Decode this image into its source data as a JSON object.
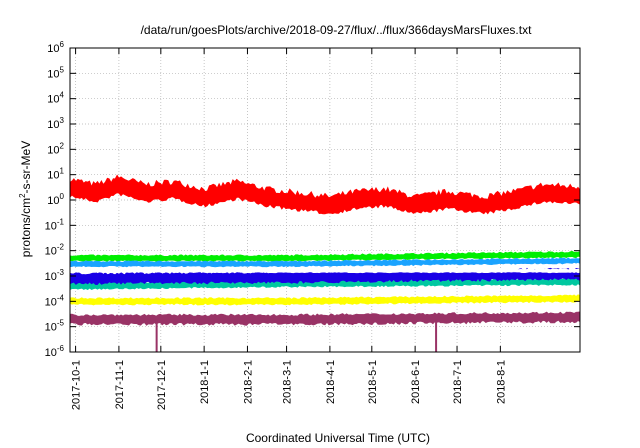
{
  "chart_data": {
    "type": "line",
    "title": "/data/run/goesPlots/archive/2018-09-27/flux/../flux/366daysMarsFluxes.txt",
    "xlabel": "Coordinated Universal Time (UTC)",
    "ylabel_parts": {
      "pre": "protons/cm",
      "sup": "2",
      "post": "-s-sr-MeV"
    },
    "y_scale": "log",
    "ylim": [
      1e-06,
      1000000.0
    ],
    "xlim": [
      "2017-09-27",
      "2018-09-27"
    ],
    "grid": true,
    "y_ticks": [
      {
        "value": 1e-06,
        "base": "10",
        "exp": "-6"
      },
      {
        "value": 1e-05,
        "base": "10",
        "exp": "-5"
      },
      {
        "value": 0.0001,
        "base": "10",
        "exp": "-4"
      },
      {
        "value": 0.001,
        "base": "10",
        "exp": "-3"
      },
      {
        "value": 0.01,
        "base": "10",
        "exp": "-2"
      },
      {
        "value": 0.1,
        "base": "10",
        "exp": "-1"
      },
      {
        "value": 1,
        "base": "10",
        "exp": "0"
      },
      {
        "value": 10,
        "base": "10",
        "exp": "1"
      },
      {
        "value": 100,
        "base": "10",
        "exp": "2"
      },
      {
        "value": 1000,
        "base": "10",
        "exp": "3"
      },
      {
        "value": 10000,
        "base": "10",
        "exp": "4"
      },
      {
        "value": 100000,
        "base": "10",
        "exp": "5"
      },
      {
        "value": 1000000,
        "base": "10",
        "exp": "6"
      }
    ],
    "x_ticks": [
      {
        "date": "2017-10-01",
        "label": "2017-10-1"
      },
      {
        "date": "2017-11-01",
        "label": "2017-11-1"
      },
      {
        "date": "2017-12-01",
        "label": "2017-12-1"
      },
      {
        "date": "2018-01-01",
        "label": "2018-1-1"
      },
      {
        "date": "2018-02-01",
        "label": "2018-2-1"
      },
      {
        "date": "2018-03-01",
        "label": "2018-3-1"
      },
      {
        "date": "2018-04-01",
        "label": "2018-4-1"
      },
      {
        "date": "2018-05-01",
        "label": "2018-5-1"
      },
      {
        "date": "2018-06-01",
        "label": "2018-6-1"
      },
      {
        "date": "2018-07-01",
        "label": "2018-7-1"
      },
      {
        "date": "2018-08-01",
        "label": "2018-8-1"
      }
    ],
    "series": [
      {
        "color": "#ff0000",
        "log_band": [
          -0.3,
          0.55
        ],
        "points": [
          {
            "date": "2017-09-27",
            "value": 2.5
          },
          {
            "date": "2017-10-15",
            "value": 1.5
          },
          {
            "date": "2017-11-01",
            "value": 3
          },
          {
            "date": "2017-11-20",
            "value": 1.5
          },
          {
            "date": "2017-12-10",
            "value": 2
          },
          {
            "date": "2018-01-01",
            "value": 1
          },
          {
            "date": "2018-01-25",
            "value": 2
          },
          {
            "date": "2018-02-15",
            "value": 1
          },
          {
            "date": "2018-03-10",
            "value": 0.7
          },
          {
            "date": "2018-04-01",
            "value": 0.5
          },
          {
            "date": "2018-04-20",
            "value": 0.8
          },
          {
            "date": "2018-05-10",
            "value": 1
          },
          {
            "date": "2018-06-01",
            "value": 0.5
          },
          {
            "date": "2018-06-25",
            "value": 0.8
          },
          {
            "date": "2018-07-20",
            "value": 0.5
          },
          {
            "date": "2018-08-10",
            "value": 0.8
          },
          {
            "date": "2018-09-01",
            "value": 1.5
          },
          {
            "date": "2018-09-27",
            "value": 1.2
          }
        ]
      },
      {
        "color": "#00ee00",
        "log_band": [
          -0.12,
          0.14
        ],
        "points": [
          {
            "date": "2017-09-27",
            "value": 0.005
          },
          {
            "date": "2018-03-01",
            "value": 0.005
          },
          {
            "date": "2018-09-27",
            "value": 0.007
          }
        ]
      },
      {
        "color": "#1aa3ff",
        "log_band": [
          -0.12,
          0.12
        ],
        "points": [
          {
            "date": "2017-09-27",
            "value": 0.003
          },
          {
            "date": "2018-03-01",
            "value": 0.003
          },
          {
            "date": "2018-09-27",
            "value": 0.004
          }
        ]
      },
      {
        "color": "#00c8a0",
        "log_band": [
          -0.15,
          0.15
        ],
        "points": [
          {
            "date": "2017-09-27",
            "value": 0.0004
          },
          {
            "date": "2018-03-01",
            "value": 0.0005
          },
          {
            "date": "2018-09-27",
            "value": 0.0006
          }
        ]
      },
      {
        "color": "#1a00e6",
        "log_band": [
          -0.25,
          0.25
        ],
        "points": [
          {
            "date": "2017-09-27",
            "value": 0.0008
          },
          {
            "date": "2018-03-01",
            "value": 0.0009
          },
          {
            "date": "2018-09-27",
            "value": 0.0012
          }
        ]
      },
      {
        "color": "#ffffff",
        "log_band": [
          -0.08,
          0.08
        ],
        "points": [
          {
            "date": "2017-09-27",
            "value": 0.0016
          },
          {
            "date": "2018-03-01",
            "value": 0.0016
          },
          {
            "date": "2018-09-27",
            "value": 0.0016
          }
        ]
      },
      {
        "color": "#ffff00",
        "log_band": [
          -0.15,
          0.15
        ],
        "points": [
          {
            "date": "2017-09-27",
            "value": 0.0001
          },
          {
            "date": "2018-03-01",
            "value": 0.0001
          },
          {
            "date": "2018-09-27",
            "value": 0.00013
          }
        ]
      },
      {
        "color": "#993366",
        "log_band": [
          -0.25,
          0.2
        ],
        "points": [
          {
            "date": "2017-09-27",
            "value": 2e-05
          },
          {
            "date": "2018-03-01",
            "value": 2e-05
          },
          {
            "date": "2018-09-27",
            "value": 2.5e-05
          }
        ]
      }
    ],
    "dropouts": [
      {
        "date": "2017-11-28",
        "value": 1e-06,
        "color": "#993366"
      },
      {
        "date": "2018-06-16",
        "value": 1e-06,
        "color": "#993366"
      }
    ]
  }
}
